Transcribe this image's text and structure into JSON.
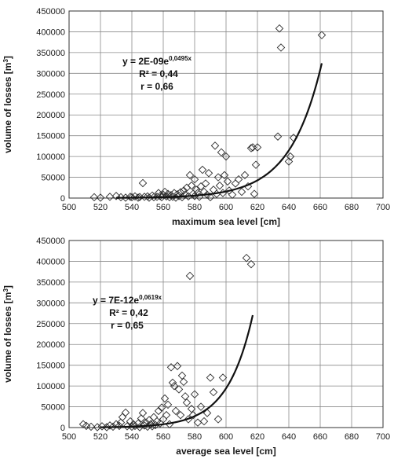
{
  "chart_data": [
    {
      "type": "scatter",
      "xlabel": "maximum sea level [cm]",
      "ylabel": "volume of losses [m",
      "ylabel_sup": "3",
      "ylabel_end": "]",
      "xlim": [
        500,
        700
      ],
      "ylim": [
        0,
        450000
      ],
      "xticks": [
        "500",
        "520",
        "540",
        "560",
        "580",
        "600",
        "620",
        "640",
        "660",
        "680",
        "700"
      ],
      "yticks": [
        "0",
        "50000",
        "100000",
        "150000",
        "200000",
        "250000",
        "300000",
        "350000",
        "400000",
        "450000"
      ],
      "grid": true,
      "marker": "diamond",
      "equation": {
        "line1": "y = 2E-09e",
        "exp": "0,0495x",
        "line2": "R² = 0,44",
        "line3": "r = 0,66"
      },
      "fit": {
        "kind": "exponential",
        "a": 2e-09,
        "b": 0.0495,
        "x_from": 530,
        "x_to": 661
      },
      "points": [
        [
          516,
          2000
        ],
        [
          520,
          1000
        ],
        [
          526,
          3000
        ],
        [
          530,
          5000
        ],
        [
          533,
          2000
        ],
        [
          536,
          1000
        ],
        [
          539,
          3000
        ],
        [
          540,
          2000
        ],
        [
          542,
          4000
        ],
        [
          544,
          1000
        ],
        [
          545,
          2500
        ],
        [
          547,
          36000
        ],
        [
          548,
          3000
        ],
        [
          550,
          4000
        ],
        [
          551,
          1000
        ],
        [
          553,
          6000
        ],
        [
          554,
          2000
        ],
        [
          556,
          3000
        ],
        [
          557,
          12000
        ],
        [
          558,
          5000
        ],
        [
          559,
          2000
        ],
        [
          560,
          8000
        ],
        [
          561,
          15000
        ],
        [
          562,
          4000
        ],
        [
          563,
          10000
        ],
        [
          564,
          2000
        ],
        [
          565,
          7000
        ],
        [
          566,
          3000
        ],
        [
          567,
          12000
        ],
        [
          568,
          1000
        ],
        [
          569,
          9000
        ],
        [
          570,
          5000
        ],
        [
          571,
          14000
        ],
        [
          572,
          2000
        ],
        [
          573,
          18000
        ],
        [
          574,
          8000
        ],
        [
          575,
          25000
        ],
        [
          576,
          4000
        ],
        [
          577,
          55000
        ],
        [
          578,
          30000
        ],
        [
          579,
          10000
        ],
        [
          580,
          45000
        ],
        [
          580,
          5000
        ],
        [
          581,
          20000
        ],
        [
          582,
          12000
        ],
        [
          583,
          3000
        ],
        [
          584,
          28000
        ],
        [
          585,
          68000
        ],
        [
          586,
          15000
        ],
        [
          587,
          35000
        ],
        [
          588,
          8000
        ],
        [
          589,
          60000
        ],
        [
          590,
          2000
        ],
        [
          592,
          20000
        ],
        [
          593,
          126000
        ],
        [
          594,
          10000
        ],
        [
          595,
          50000
        ],
        [
          596,
          30000
        ],
        [
          597,
          110000
        ],
        [
          598,
          12000
        ],
        [
          599,
          55000
        ],
        [
          600,
          100000
        ],
        [
          601,
          40000
        ],
        [
          602,
          18000
        ],
        [
          604,
          8000
        ],
        [
          606,
          35000
        ],
        [
          608,
          45000
        ],
        [
          610,
          15000
        ],
        [
          612,
          55000
        ],
        [
          614,
          28000
        ],
        [
          616,
          120000
        ],
        [
          617,
          122000
        ],
        [
          618,
          10000
        ],
        [
          619,
          80000
        ],
        [
          620,
          122000
        ],
        [
          633,
          148000
        ],
        [
          634,
          408000
        ],
        [
          635,
          362000
        ],
        [
          640,
          88000
        ],
        [
          641,
          100000
        ],
        [
          643,
          145000
        ],
        [
          661,
          392000
        ]
      ]
    },
    {
      "type": "scatter",
      "xlabel": "average sea level [cm]",
      "ylabel": "volume of losses [m",
      "ylabel_sup": "3",
      "ylabel_end": "]",
      "xlim": [
        500,
        700
      ],
      "ylim": [
        0,
        450000
      ],
      "xticks": [
        "500",
        "520",
        "540",
        "560",
        "580",
        "600",
        "620",
        "640",
        "660",
        "680",
        "700"
      ],
      "yticks": [
        "0",
        "50000",
        "100000",
        "150000",
        "200000",
        "250000",
        "300000",
        "350000",
        "400000",
        "450000"
      ],
      "grid": true,
      "marker": "diamond",
      "equation": {
        "line1": "y = 7E-12e",
        "exp": "0,0619x",
        "line2": "R² = 0,42",
        "line3": "r = 0,65"
      },
      "fit": {
        "kind": "exponential",
        "a": 7e-12,
        "b": 0.0619,
        "x_from": 520,
        "x_to": 617
      },
      "points": [
        [
          509,
          8000
        ],
        [
          511,
          4000
        ],
        [
          514,
          2000
        ],
        [
          518,
          1000
        ],
        [
          521,
          3000
        ],
        [
          524,
          1000
        ],
        [
          526,
          5000
        ],
        [
          528,
          2000
        ],
        [
          530,
          8000
        ],
        [
          532,
          4000
        ],
        [
          533,
          12000
        ],
        [
          534,
          25000
        ],
        [
          536,
          36000
        ],
        [
          537,
          3000
        ],
        [
          539,
          15000
        ],
        [
          540,
          2000
        ],
        [
          541,
          8000
        ],
        [
          542,
          4000
        ],
        [
          544,
          10000
        ],
        [
          545,
          1000
        ],
        [
          546,
          22000
        ],
        [
          547,
          35000
        ],
        [
          548,
          5000
        ],
        [
          549,
          12000
        ],
        [
          550,
          2000
        ],
        [
          551,
          18000
        ],
        [
          552,
          8000
        ],
        [
          553,
          3000
        ],
        [
          554,
          25000
        ],
        [
          555,
          6000
        ],
        [
          556,
          15000
        ],
        [
          557,
          40000
        ],
        [
          558,
          10000
        ],
        [
          559,
          48000
        ],
        [
          560,
          20000
        ],
        [
          561,
          70000
        ],
        [
          562,
          30000
        ],
        [
          563,
          55000
        ],
        [
          564,
          8000
        ],
        [
          565,
          145000
        ],
        [
          566,
          108000
        ],
        [
          567,
          100000
        ],
        [
          568,
          40000
        ],
        [
          569,
          148000
        ],
        [
          570,
          92000
        ],
        [
          571,
          30000
        ],
        [
          572,
          125000
        ],
        [
          573,
          110000
        ],
        [
          574,
          75000
        ],
        [
          575,
          60000
        ],
        [
          576,
          20000
        ],
        [
          577,
          365000
        ],
        [
          578,
          45000
        ],
        [
          579,
          30000
        ],
        [
          580,
          80000
        ],
        [
          582,
          12000
        ],
        [
          584,
          50000
        ],
        [
          586,
          15000
        ],
        [
          588,
          35000
        ],
        [
          590,
          120000
        ],
        [
          592,
          85000
        ],
        [
          595,
          20000
        ],
        [
          598,
          120000
        ],
        [
          613,
          408000
        ],
        [
          616,
          393000
        ]
      ]
    }
  ]
}
